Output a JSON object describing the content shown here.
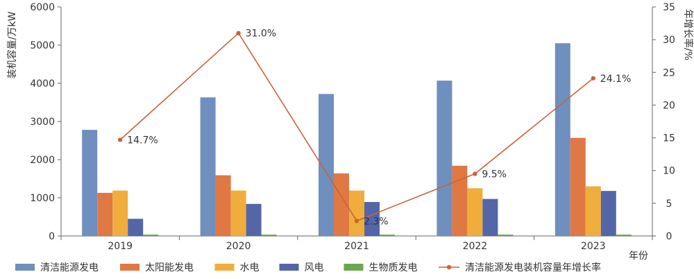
{
  "chart_data": {
    "type": "bar",
    "categories": [
      "2019",
      "2020",
      "2021",
      "2022",
      "2023"
    ],
    "xlabel": "年份",
    "ylabel": "装机容量/万kW",
    "y2label": "年增长率/%",
    "ylim": [
      0,
      6000
    ],
    "yticks": [
      0,
      1000,
      2000,
      3000,
      4000,
      5000,
      6000
    ],
    "y2lim": [
      0,
      35
    ],
    "y2ticks": [
      0,
      5,
      10,
      15,
      20,
      25,
      30,
      35
    ],
    "series": [
      {
        "name": "清洁能源发电",
        "color": "#6f8fbe",
        "values": [
          2780,
          3630,
          3720,
          4070,
          5050
        ]
      },
      {
        "name": "太阳能发电",
        "color": "#e07844",
        "values": [
          1130,
          1590,
          1640,
          1840,
          2570
        ]
      },
      {
        "name": "水电",
        "color": "#f0ad3c",
        "values": [
          1190,
          1190,
          1190,
          1250,
          1300
        ]
      },
      {
        "name": "风电",
        "color": "#5466a8",
        "values": [
          450,
          840,
          890,
          970,
          1180
        ]
      },
      {
        "name": "生物质发电",
        "color": "#6aa84f",
        "values": [
          20,
          20,
          20,
          20,
          20
        ]
      }
    ],
    "line": {
      "name": "清洁能源发电装机容量年增长率",
      "color": "#c8643a",
      "values": [
        14.7,
        31.0,
        2.3,
        9.5,
        24.1
      ],
      "labels": [
        "14.7%",
        "31.0%",
        "2.3%",
        "9.5%",
        "24.1%"
      ]
    },
    "grid": false,
    "legend_position": "bottom"
  }
}
